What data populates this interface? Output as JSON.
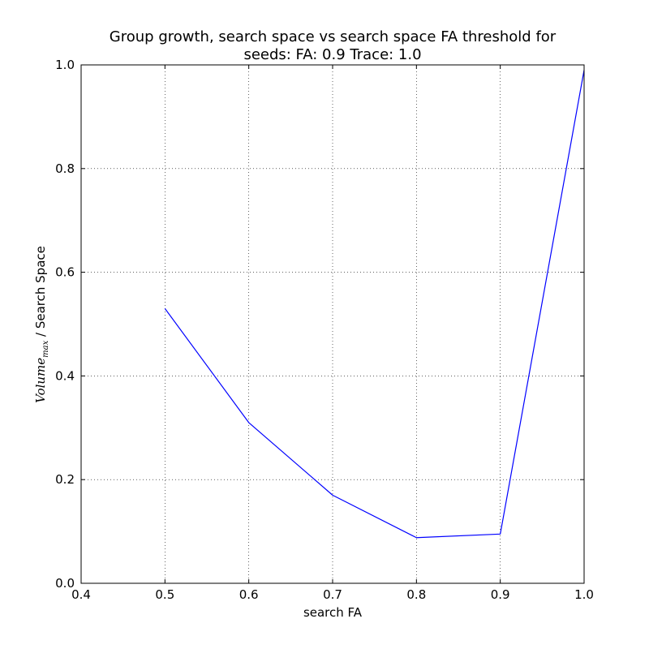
{
  "chart_data": {
    "type": "line",
    "title": "Group growth, search space vs search space FA threshold for",
    "subtitle": "seeds: FA: 0.9 Trace: 1.0",
    "xlabel": "search FA",
    "ylabel": {
      "math_main": "Volume",
      "math_sub": "max",
      "text": " / Search Space"
    },
    "xlim": [
      0.4,
      1.0
    ],
    "ylim": [
      0.0,
      1.0
    ],
    "xticks": [
      0.4,
      0.5,
      0.6,
      0.7,
      0.8,
      0.9,
      1.0
    ],
    "xtick_labels": [
      "0.4",
      "0.5",
      "0.6",
      "0.7",
      "0.8",
      "0.9",
      "1.0"
    ],
    "yticks": [
      0.0,
      0.2,
      0.4,
      0.6,
      0.8,
      1.0
    ],
    "ytick_labels": [
      "0.0",
      "0.2",
      "0.4",
      "0.6",
      "0.8",
      "1.0"
    ],
    "grid": true,
    "legend": "none",
    "series": [
      {
        "color": "#0000ff",
        "x": [
          0.5,
          0.6,
          0.7,
          0.8,
          0.9,
          1.0
        ],
        "y": [
          0.53,
          0.31,
          0.17,
          0.088,
          0.095,
          0.99
        ]
      }
    ]
  }
}
